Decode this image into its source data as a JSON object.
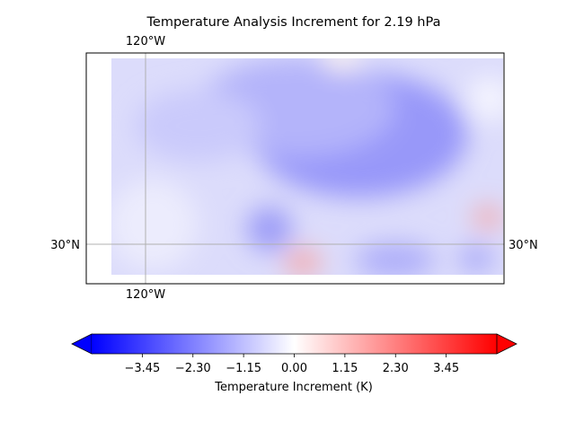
{
  "chart_data": {
    "type": "heatmap",
    "title": "Temperature Analysis Increment for  2.19 hPa",
    "map": {
      "projection": "PlateCarree",
      "gridline_lon_label": "120°W",
      "gridline_lat_label": "30°N",
      "field_description": "mostly weak negative increments (light blue), strongest negative near the centre-top, a few positive (red) blobs near the south and east edges",
      "features": [
        {
          "kind": "negative-max",
          "approx_value": -1.3
        },
        {
          "kind": "negative-minor",
          "approx_value": -1.0
        },
        {
          "kind": "positive",
          "approx_value": 0.9
        },
        {
          "kind": "positive",
          "approx_value": 0.8
        }
      ]
    },
    "colorbar": {
      "label": "Temperature Increment (K)",
      "colormap": "bwr",
      "vmin": -4.6,
      "vmax": 4.6,
      "extend": "both",
      "ticks": [
        -3.45,
        -2.3,
        -1.15,
        0.0,
        1.15,
        2.3,
        3.45
      ],
      "tick_labels": [
        "−3.45",
        "−2.30",
        "−1.15",
        "0.00",
        "1.15",
        "2.30",
        "3.45"
      ],
      "colors": {
        "low": "#0000ff",
        "mid": "#ffffff",
        "high": "#ff0000"
      }
    },
    "colors": {
      "gridline": "#b0b0b0",
      "frame": "#000000"
    }
  }
}
